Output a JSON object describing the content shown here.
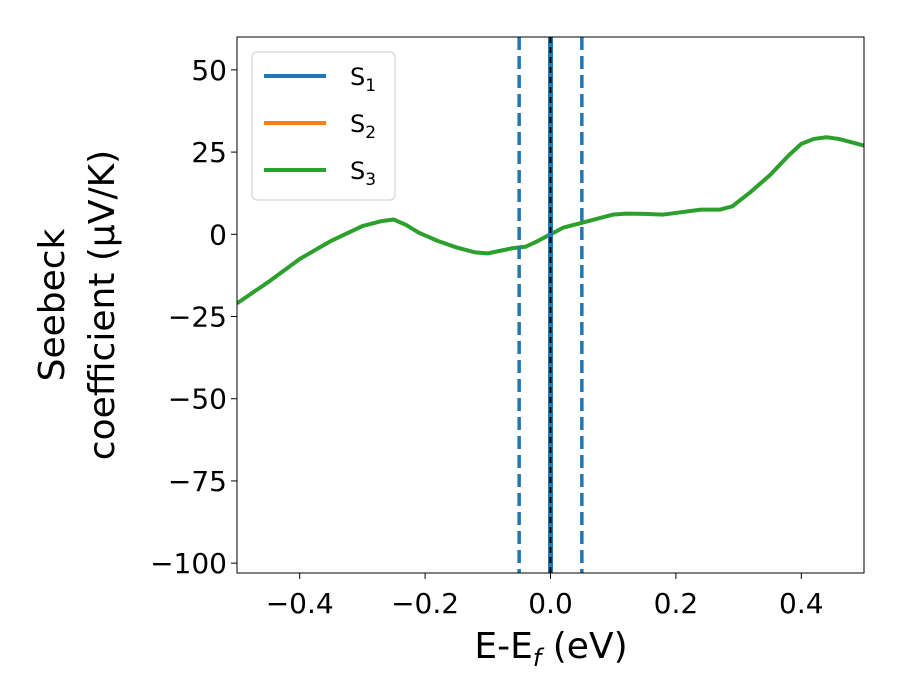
{
  "chart_data": {
    "type": "line",
    "xlabel_main": "E-E",
    "xlabel_sub": "f",
    "xlabel_unit": " (eV)",
    "ylabel_line1": "Seebeck",
    "ylabel_line2": "coefficient  (μV/K)",
    "xlim": [
      -0.5,
      0.5
    ],
    "ylim": [
      -103,
      60
    ],
    "x_ticks": [
      -0.4,
      -0.2,
      0.0,
      0.2,
      0.4
    ],
    "x_tick_labels": [
      "−0.4",
      "−0.2",
      "0.0",
      "0.2",
      "0.4"
    ],
    "y_ticks": [
      50,
      25,
      0,
      -25,
      -50,
      -75,
      -100
    ],
    "y_tick_labels": [
      "50",
      "25",
      "0",
      "−25",
      "−50",
      "−75",
      "−100"
    ],
    "legend_position": "top-left",
    "series": [
      {
        "name_main": "S",
        "name_sub": "1",
        "color": "#1f77b4"
      },
      {
        "name_main": "S",
        "name_sub": "2",
        "color": "#ff7f0e"
      },
      {
        "name_main": "S",
        "name_sub": "3",
        "color": "#2ca02c"
      }
    ],
    "curve": {
      "series_index": 2,
      "x": [
        -0.5,
        -0.45,
        -0.4,
        -0.35,
        -0.3,
        -0.27,
        -0.25,
        -0.23,
        -0.21,
        -0.18,
        -0.15,
        -0.12,
        -0.1,
        -0.08,
        -0.06,
        -0.04,
        -0.02,
        0.0,
        0.02,
        0.05,
        0.08,
        0.1,
        0.12,
        0.15,
        0.18,
        0.2,
        0.22,
        0.24,
        0.27,
        0.29,
        0.32,
        0.35,
        0.38,
        0.4,
        0.42,
        0.44,
        0.46,
        0.5
      ],
      "y": [
        -21,
        -14.5,
        -7.5,
        -2,
        2.5,
        4,
        4.5,
        2.8,
        0.5,
        -2,
        -4,
        -5.5,
        -5.8,
        -5,
        -4.2,
        -3.8,
        -2,
        0,
        2,
        3.5,
        5,
        6,
        6.3,
        6.2,
        6,
        6.5,
        7,
        7.5,
        7.5,
        8.5,
        13,
        18,
        24,
        27.5,
        29,
        29.5,
        29,
        27
      ]
    },
    "vlines": [
      {
        "x": -0.05,
        "color": "#1f77b4",
        "style": "dashed"
      },
      {
        "x": 0.05,
        "color": "#1f77b4",
        "style": "dashed"
      },
      {
        "x": 0.0,
        "color": "#1f77b4",
        "style": "solid"
      },
      {
        "x": 0.0,
        "color": "#000000",
        "style": "dashed"
      }
    ]
  }
}
